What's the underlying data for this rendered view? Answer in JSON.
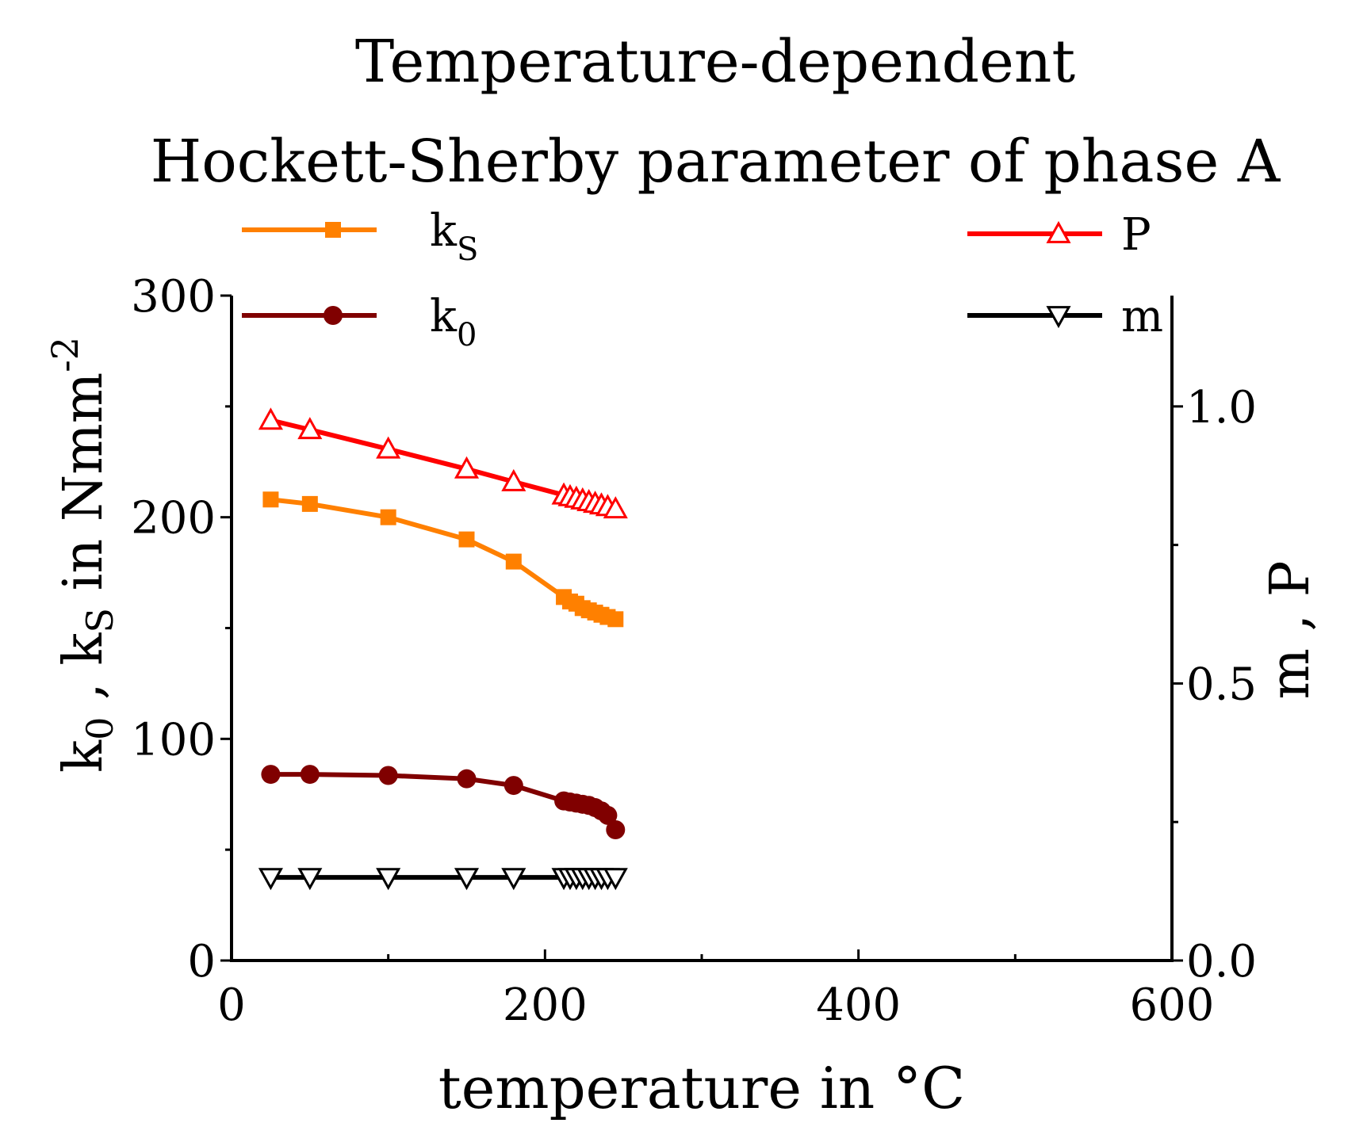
{
  "chart_data": {
    "type": "line",
    "title_line1": "Temperature-dependent",
    "title_line2": "Hockett-Sherby parameter of phase A",
    "xlabel": "temperature in °C",
    "ylabel_left": {
      "k0_base": "k",
      "k0_sub": "0",
      "sep": " , ",
      "ks_base": "k",
      "ks_sub": "S",
      "rest": " in Nmm",
      "exponent": "-2"
    },
    "ylabel_right": "m , P",
    "xlim": [
      0,
      600
    ],
    "ylim_left": [
      0,
      300
    ],
    "ylim_right": [
      0.0,
      1.2
    ],
    "x_ticks": [
      "0",
      "200",
      "400",
      "600"
    ],
    "y_left_ticks": [
      "0",
      "100",
      "200",
      "300"
    ],
    "y_right_ticks": [
      "0.0",
      "0.5",
      "1.0"
    ],
    "series": [
      {
        "name": "ks",
        "label_base": "k",
        "label_sub": "S",
        "axis": "left",
        "color": "#ff8000",
        "marker": "square-filled",
        "x": [
          25,
          50,
          100,
          150,
          180,
          212,
          216,
          220,
          224,
          228,
          232,
          236,
          240,
          245
        ],
        "y": [
          208,
          206,
          200,
          190,
          180,
          164,
          162,
          161,
          159,
          158,
          157,
          156,
          155,
          154
        ]
      },
      {
        "name": "k0",
        "label_base": "k",
        "label_sub": "0",
        "axis": "left",
        "color": "#800000",
        "marker": "circle-filled",
        "x": [
          25,
          50,
          100,
          150,
          180,
          212,
          216,
          220,
          224,
          228,
          232,
          236,
          240,
          245
        ],
        "y": [
          84,
          84,
          83.5,
          82,
          79,
          72,
          71.5,
          71,
          70.5,
          70,
          69,
          67.5,
          65.5,
          59
        ]
      },
      {
        "name": "P",
        "label_base": "P",
        "label_sub": "",
        "axis": "right",
        "color": "#ff0000",
        "marker": "triangle-up-open",
        "x": [
          25,
          50,
          100,
          150,
          180,
          212,
          216,
          220,
          224,
          228,
          232,
          236,
          240,
          245
        ],
        "y": [
          0.975,
          0.958,
          0.923,
          0.887,
          0.864,
          0.84,
          0.837,
          0.834,
          0.831,
          0.828,
          0.825,
          0.822,
          0.819,
          0.815
        ]
      },
      {
        "name": "m",
        "label_base": "m",
        "label_sub": "",
        "axis": "right",
        "color": "#000000",
        "marker": "triangle-down-open",
        "x": [
          25,
          50,
          100,
          150,
          180,
          212,
          216,
          220,
          224,
          228,
          232,
          236,
          240,
          245
        ],
        "y": [
          0.15,
          0.15,
          0.15,
          0.15,
          0.15,
          0.15,
          0.15,
          0.15,
          0.15,
          0.15,
          0.15,
          0.15,
          0.15,
          0.15
        ]
      }
    ],
    "legend_left": [
      "ks",
      "k0"
    ],
    "legend_right": [
      "P",
      "m"
    ]
  }
}
